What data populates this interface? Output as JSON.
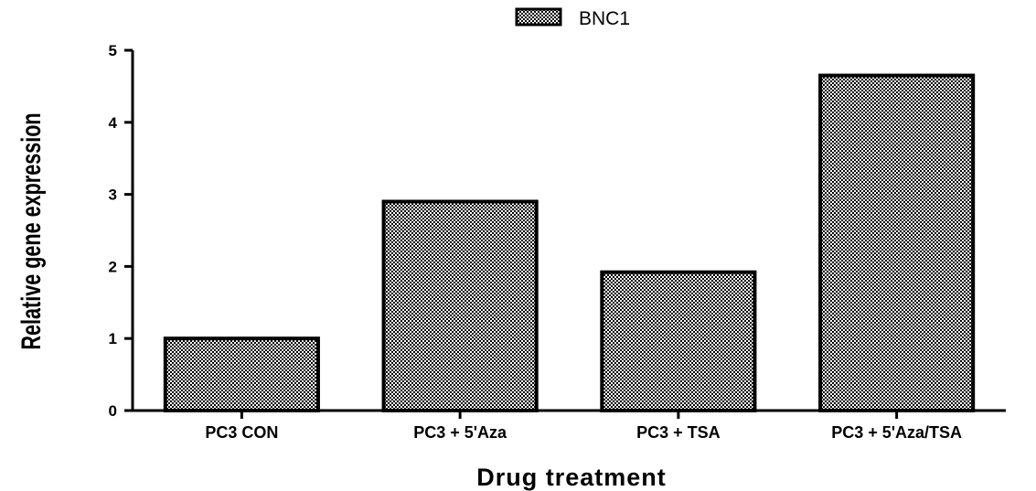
{
  "chart_data": {
    "type": "bar",
    "categories": [
      "PC3 CON",
      "PC3 + 5'Aza",
      "PC3 + TSA",
      "PC3 + 5'Aza/TSA"
    ],
    "series": [
      {
        "name": "BNC1",
        "values": [
          1.0,
          2.9,
          1.92,
          4.65
        ]
      }
    ],
    "xlabel": "Drug treatment",
    "ylabel": "Relative gene expression",
    "ylim": [
      0,
      5
    ],
    "yticks": [
      0,
      1,
      2,
      3,
      4,
      5
    ],
    "grid": false,
    "legend_position": "top-center"
  }
}
